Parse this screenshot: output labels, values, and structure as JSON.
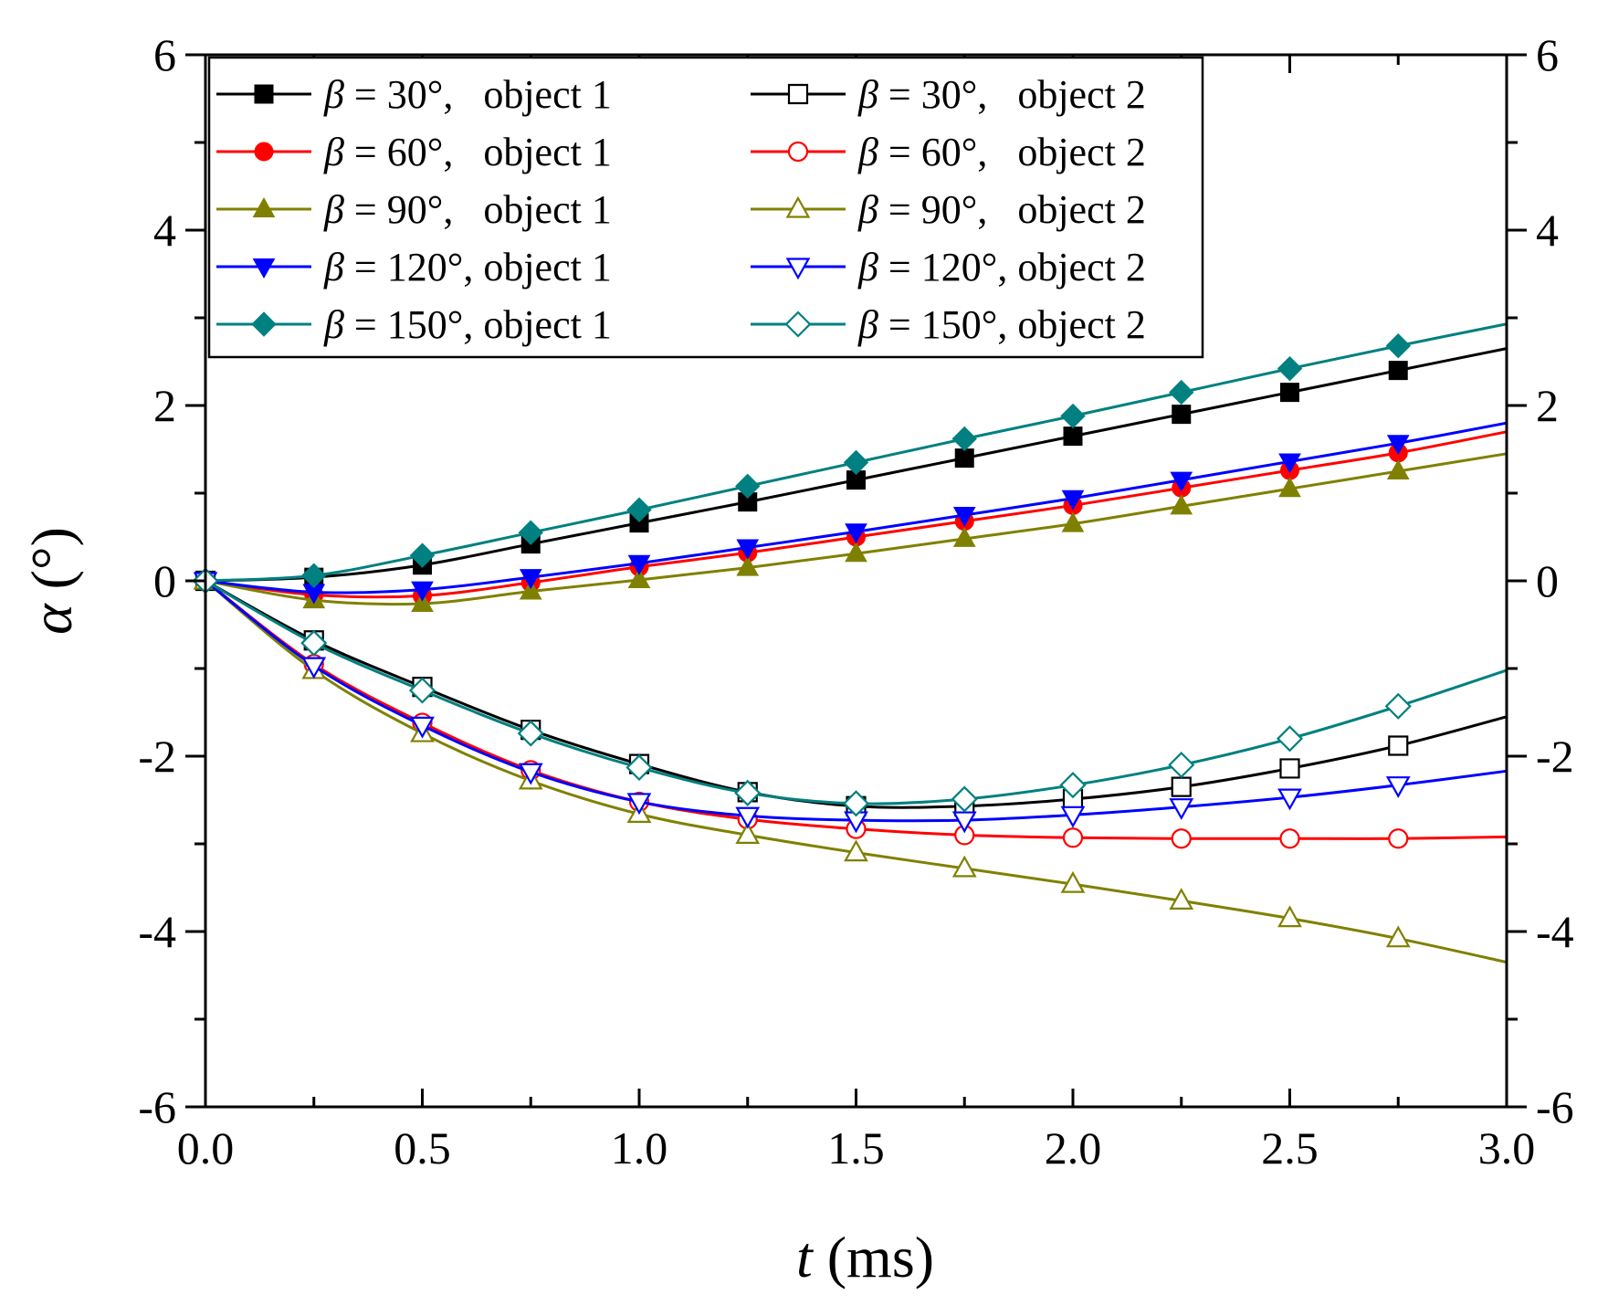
{
  "chart_data": {
    "type": "line",
    "title": "",
    "xlabel": {
      "symbol": "t",
      "unit": " (ms)"
    },
    "ylabel": {
      "symbol": "α",
      "unit": " (°)"
    },
    "xlim": [
      0,
      3
    ],
    "ylim": [
      -6,
      6
    ],
    "xticks": [
      0,
      0.5,
      1,
      1.5,
      2,
      2.5,
      3
    ],
    "xtick_labels": [
      "0.0",
      "0.5",
      "1.0",
      "1.5",
      "2.0",
      "2.5",
      "3.0"
    ],
    "yticks": [
      -6,
      -4,
      -2,
      0,
      2,
      4,
      6
    ],
    "ytick_labels": [
      "-6",
      "-4",
      "-2",
      "0",
      "2",
      "4",
      "6"
    ],
    "right_axis_mirrored": true,
    "grid": false,
    "legend_position": "top-left",
    "x": [
      0,
      0.25,
      0.5,
      0.75,
      1.0,
      1.25,
      1.5,
      1.75,
      2.0,
      2.25,
      2.5,
      2.75,
      3.0
    ],
    "series": [
      {
        "name": "β = 30°,   object 1",
        "beta": "β",
        "label_rest": " = 30°,   object 1",
        "color": "#000000",
        "marker": "square",
        "filled": true,
        "values": [
          0,
          0.04,
          0.18,
          0.42,
          0.66,
          0.9,
          1.15,
          1.4,
          1.65,
          1.9,
          2.15,
          2.4,
          2.65
        ]
      },
      {
        "name": "β = 60°,   object 1",
        "beta": "β",
        "label_rest": " = 60°,   object 1",
        "color": "#ff0000",
        "marker": "circle",
        "filled": true,
        "values": [
          0,
          -0.16,
          -0.17,
          -0.02,
          0.16,
          0.32,
          0.5,
          0.68,
          0.86,
          1.06,
          1.26,
          1.46,
          1.7
        ]
      },
      {
        "name": "β = 90°,   object 1",
        "beta": "β",
        "label_rest": " = 90°,   object 1",
        "color": "#808000",
        "marker": "triangle-up",
        "filled": true,
        "values": [
          0,
          -0.22,
          -0.26,
          -0.12,
          0.01,
          0.15,
          0.31,
          0.48,
          0.65,
          0.85,
          1.05,
          1.25,
          1.45
        ]
      },
      {
        "name": "β = 120°, object 1",
        "beta": "β",
        "label_rest": " = 120°, object 1",
        "color": "#0000ff",
        "marker": "triangle-down",
        "filled": true,
        "values": [
          0,
          -0.13,
          -0.1,
          0.04,
          0.2,
          0.38,
          0.56,
          0.75,
          0.94,
          1.15,
          1.36,
          1.57,
          1.8
        ]
      },
      {
        "name": "β = 150°, object 1",
        "beta": "β",
        "label_rest": " = 150°, object 1",
        "color": "#008080",
        "marker": "diamond",
        "filled": true,
        "values": [
          0,
          0.06,
          0.29,
          0.55,
          0.81,
          1.08,
          1.35,
          1.62,
          1.88,
          2.15,
          2.42,
          2.68,
          2.93
        ]
      },
      {
        "name": "β = 30°,   object 2",
        "beta": "β",
        "label_rest": " = 30°,   object 2",
        "color": "#000000",
        "marker": "square",
        "filled": false,
        "values": [
          0,
          -0.68,
          -1.21,
          -1.7,
          -2.09,
          -2.41,
          -2.57,
          -2.57,
          -2.49,
          -2.35,
          -2.14,
          -1.88,
          -1.55
        ]
      },
      {
        "name": "β = 60°,   object 2",
        "beta": "β",
        "label_rest": " = 60°,   object 2",
        "color": "#ff0000",
        "marker": "circle",
        "filled": false,
        "values": [
          0,
          -0.95,
          -1.62,
          -2.16,
          -2.52,
          -2.72,
          -2.83,
          -2.9,
          -2.93,
          -2.94,
          -2.94,
          -2.94,
          -2.92
        ]
      },
      {
        "name": "β = 90°,   object 2",
        "beta": "β",
        "label_rest": " = 90°,   object 2",
        "color": "#808000",
        "marker": "triangle-up",
        "filled": false,
        "values": [
          0,
          -1.02,
          -1.74,
          -2.28,
          -2.66,
          -2.9,
          -3.1,
          -3.28,
          -3.46,
          -3.65,
          -3.85,
          -4.08,
          -4.35
        ]
      },
      {
        "name": "β = 120°, object 2",
        "beta": "β",
        "label_rest": " = 120°, object 2",
        "color": "#0000ff",
        "marker": "triangle-down",
        "filled": false,
        "values": [
          0,
          -0.97,
          -1.65,
          -2.18,
          -2.52,
          -2.68,
          -2.73,
          -2.73,
          -2.67,
          -2.58,
          -2.47,
          -2.33,
          -2.17
        ]
      },
      {
        "name": "β = 150°, object 2",
        "beta": "β",
        "label_rest": " = 150°, object 2",
        "color": "#008080",
        "marker": "diamond",
        "filled": false,
        "values": [
          0,
          -0.71,
          -1.25,
          -1.74,
          -2.13,
          -2.42,
          -2.54,
          -2.49,
          -2.33,
          -2.1,
          -1.8,
          -1.43,
          -1.02
        ]
      }
    ]
  }
}
